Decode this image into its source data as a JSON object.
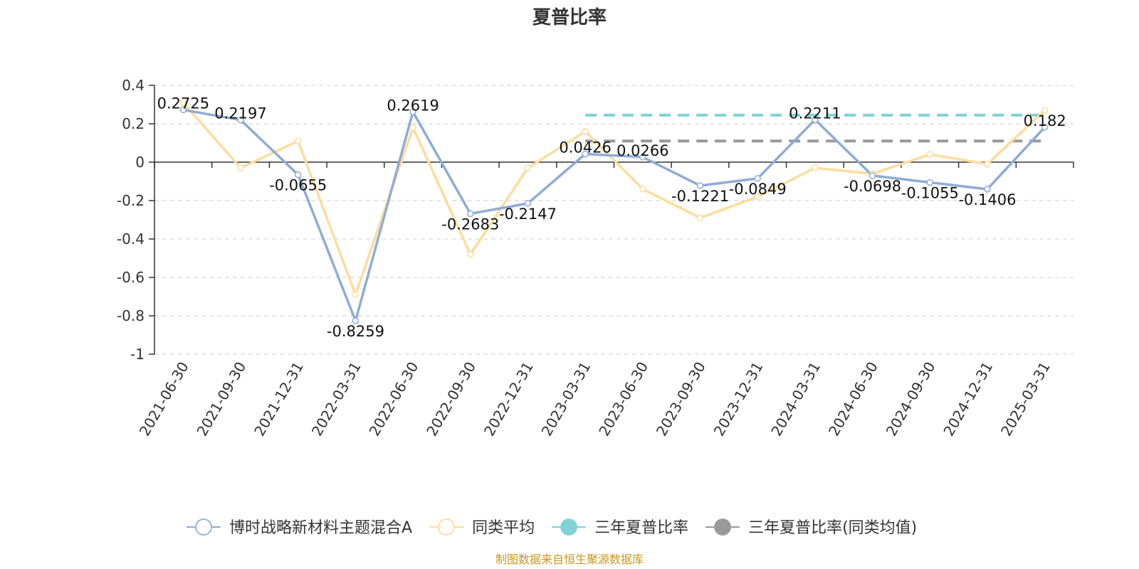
{
  "chart_data": {
    "type": "line",
    "title": "夏普比率",
    "categories": [
      "2021-06-30",
      "2021-09-30",
      "2021-12-31",
      "2022-03-31",
      "2022-06-30",
      "2022-09-30",
      "2022-12-31",
      "2023-03-31",
      "2023-06-30",
      "2023-09-30",
      "2023-12-31",
      "2024-03-31",
      "2024-06-30",
      "2024-09-30",
      "2024-12-31",
      "2025-03-31"
    ],
    "yticks": [
      "0.4",
      "0.2",
      "0",
      "-0.2",
      "-0.4",
      "-0.6",
      "-0.8",
      "-1"
    ],
    "ylim": [
      -1,
      0.4
    ],
    "grid": true,
    "legend_position": "bottom",
    "series": [
      {
        "name": "博时战略新材料主题混合A",
        "color": "#8eacd8",
        "values": [
          0.2725,
          0.2197,
          -0.0655,
          -0.8259,
          0.2619,
          -0.2683,
          -0.2147,
          0.0426,
          0.0266,
          -0.1221,
          -0.0849,
          0.2211,
          -0.0698,
          -0.1055,
          -0.1406,
          0.182
        ],
        "labels": [
          "0.2725",
          "0.2197",
          "-0.0655",
          "-0.8259",
          "0.2619",
          "-0.2683",
          "-0.2147",
          "0.0426",
          "0.0266",
          "-0.1221",
          "-0.0849",
          "0.2211",
          "-0.0698",
          "-0.1055",
          "-0.1406",
          "0.182"
        ]
      },
      {
        "name": "同类平均",
        "color": "#fddc9c",
        "values": [
          0.31,
          -0.03,
          0.11,
          -0.69,
          0.18,
          -0.48,
          -0.03,
          0.16,
          -0.14,
          -0.29,
          -0.18,
          -0.03,
          -0.06,
          0.04,
          -0.01,
          0.27
        ]
      }
    ],
    "reference_lines": [
      {
        "name": "三年夏普比率",
        "color": "#7fd3d6",
        "value": 0.245,
        "from": "2023-03-31",
        "to": "2025-03-31"
      },
      {
        "name": "三年夏普比率(同类均值)",
        "color": "#999999",
        "value": 0.11,
        "from": "2023-03-31",
        "to": "2025-03-31"
      }
    ],
    "source": "制图数据来自恒生聚源数据库",
    "source_color": "#c8961e"
  }
}
